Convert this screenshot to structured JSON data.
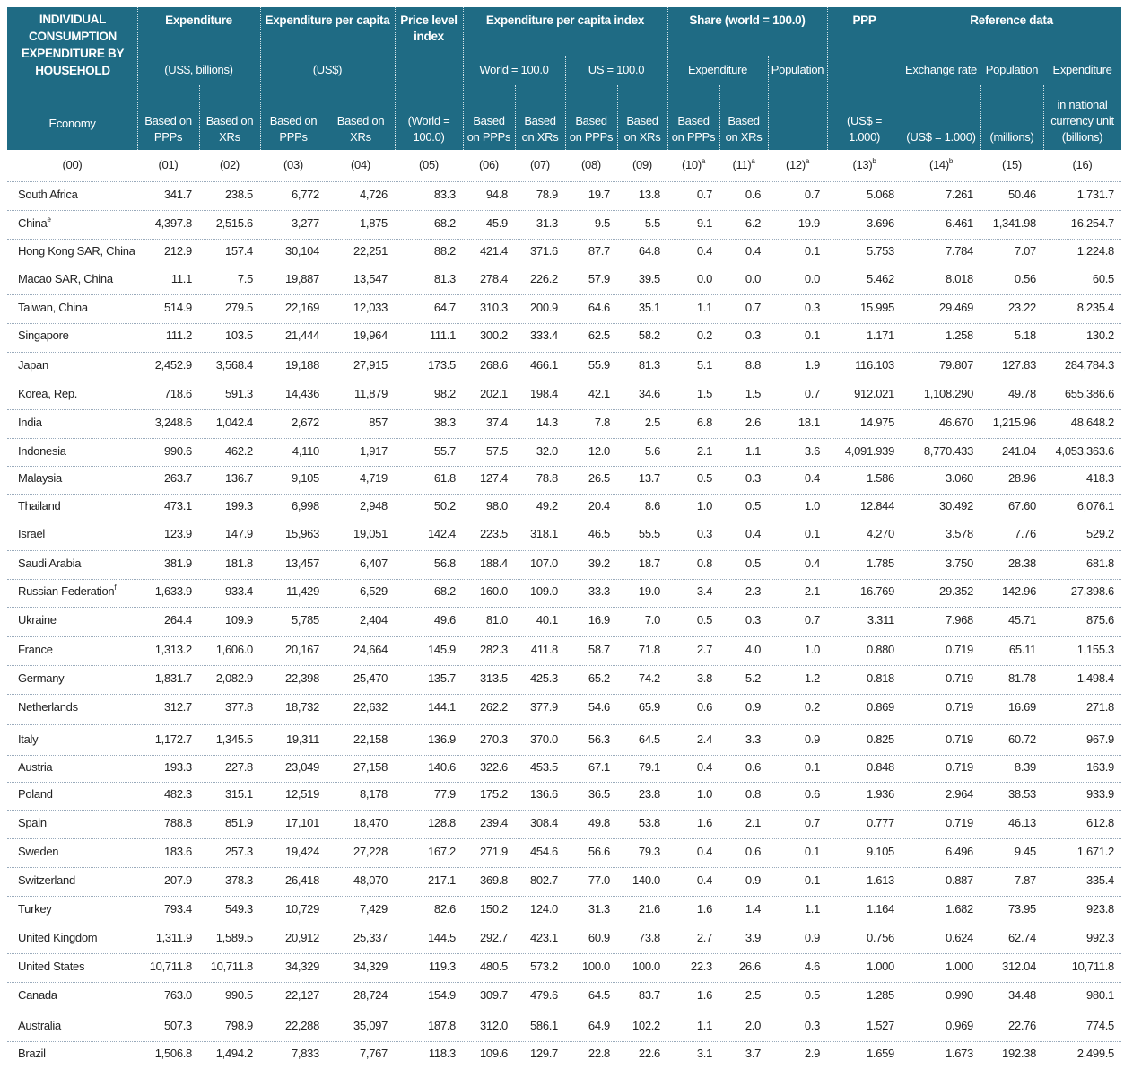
{
  "header": {
    "title": "INDIVIDUAL CONSUMPTION EXPENDITURE BY HOUSEHOLD",
    "economy": "Economy",
    "groups": [
      "Expenditure",
      "Expenditure per capita",
      "Price level index",
      "Expenditure per capita index",
      "Share (world = 100.0)",
      "PPP",
      "Reference data"
    ],
    "subgroups": [
      "(US$, billions)",
      "(US$)",
      "World = 100.0",
      "US = 100.0",
      "Expenditure",
      "Population",
      "Exchange rate",
      "Population",
      "Expenditure"
    ],
    "column_labels": [
      "Based on PPPs",
      "Based on XRs",
      "Based on PPPs",
      "Based on XRs",
      "(World = 100.0)",
      "Based on PPPs",
      "Based on XRs",
      "Based on PPPs",
      "Based on XRs",
      "Based on PPPs",
      "Based on XRs",
      "(US$ = 1.000)",
      "(US$ = 1.000)",
      "(millions)",
      "in national currency unit (billions)"
    ],
    "codes": [
      {
        "text": "(00)"
      },
      {
        "text": "(01)"
      },
      {
        "text": "(02)"
      },
      {
        "text": "(03)"
      },
      {
        "text": "(04)"
      },
      {
        "text": "(05)"
      },
      {
        "text": "(06)"
      },
      {
        "text": "(07)"
      },
      {
        "text": "(08)"
      },
      {
        "text": "(09)"
      },
      {
        "text": "(10)",
        "note": "a"
      },
      {
        "text": "(11)",
        "note": "a"
      },
      {
        "text": "(12)",
        "note": "a"
      },
      {
        "text": "(13)",
        "note": "b"
      },
      {
        "text": "(14)",
        "note": "b"
      },
      {
        "text": "(15)"
      },
      {
        "text": "(16)"
      }
    ]
  },
  "table": {
    "rows": [
      {
        "economy": "South Africa",
        "values": [
          "341.7",
          "238.5",
          "6,772",
          "4,726",
          "83.3",
          "94.8",
          "78.9",
          "19.7",
          "13.8",
          "0.7",
          "0.6",
          "0.7",
          "5.068",
          "7.261",
          "50.46",
          "1,731.7"
        ]
      },
      {
        "economy": "China",
        "note": "e",
        "values": [
          "4,397.8",
          "2,515.6",
          "3,277",
          "1,875",
          "68.2",
          "45.9",
          "31.3",
          "9.5",
          "5.5",
          "9.1",
          "6.2",
          "19.9",
          "3.696",
          "6.461",
          "1,341.98",
          "16,254.7"
        ]
      },
      {
        "economy": "Hong Kong SAR, China",
        "values": [
          "212.9",
          "157.4",
          "30,104",
          "22,251",
          "88.2",
          "421.4",
          "371.6",
          "87.7",
          "64.8",
          "0.4",
          "0.4",
          "0.1",
          "5.753",
          "7.784",
          "7.07",
          "1,224.8"
        ]
      },
      {
        "economy": "Macao SAR, China",
        "values": [
          "11.1",
          "7.5",
          "19,887",
          "13,547",
          "81.3",
          "278.4",
          "226.2",
          "57.9",
          "39.5",
          "0.0",
          "0.0",
          "0.0",
          "5.462",
          "8.018",
          "0.56",
          "60.5"
        ]
      },
      {
        "economy": "Taiwan, China",
        "values": [
          "514.9",
          "279.5",
          "22,169",
          "12,033",
          "64.7",
          "310.3",
          "200.9",
          "64.6",
          "35.1",
          "1.1",
          "0.7",
          "0.3",
          "15.995",
          "29.469",
          "23.22",
          "8,235.4"
        ]
      },
      {
        "economy": "Singapore",
        "values": [
          "111.2",
          "103.5",
          "21,444",
          "19,964",
          "111.1",
          "300.2",
          "333.4",
          "62.5",
          "58.2",
          "0.2",
          "0.3",
          "0.1",
          "1.171",
          "1.258",
          "5.18",
          "130.2"
        ]
      },
      {
        "economy": "Japan",
        "values": [
          "2,452.9",
          "3,568.4",
          "19,188",
          "27,915",
          "173.5",
          "268.6",
          "466.1",
          "55.9",
          "81.3",
          "5.1",
          "8.8",
          "1.9",
          "116.103",
          "79.807",
          "127.83",
          "284,784.3"
        ]
      },
      {
        "economy": "Korea, Rep.",
        "values": [
          "718.6",
          "591.3",
          "14,436",
          "11,879",
          "98.2",
          "202.1",
          "198.4",
          "42.1",
          "34.6",
          "1.5",
          "1.5",
          "0.7",
          "912.021",
          "1,108.290",
          "49.78",
          "655,386.6"
        ]
      },
      {
        "economy": "India",
        "values": [
          "3,248.6",
          "1,042.4",
          "2,672",
          "857",
          "38.3",
          "37.4",
          "14.3",
          "7.8",
          "2.5",
          "6.8",
          "2.6",
          "18.1",
          "14.975",
          "46.670",
          "1,215.96",
          "48,648.2"
        ]
      },
      {
        "economy": "Indonesia",
        "values": [
          "990.6",
          "462.2",
          "4,110",
          "1,917",
          "55.7",
          "57.5",
          "32.0",
          "12.0",
          "5.6",
          "2.1",
          "1.1",
          "3.6",
          "4,091.939",
          "8,770.433",
          "241.04",
          "4,053,363.6"
        ]
      },
      {
        "economy": "Malaysia",
        "values": [
          "263.7",
          "136.7",
          "9,105",
          "4,719",
          "61.8",
          "127.4",
          "78.8",
          "26.5",
          "13.7",
          "0.5",
          "0.3",
          "0.4",
          "1.586",
          "3.060",
          "28.96",
          "418.3"
        ]
      },
      {
        "economy": "Thailand",
        "values": [
          "473.1",
          "199.3",
          "6,998",
          "2,948",
          "50.2",
          "98.0",
          "49.2",
          "20.4",
          "8.6",
          "1.0",
          "0.5",
          "1.0",
          "12.844",
          "30.492",
          "67.60",
          "6,076.1"
        ]
      },
      {
        "economy": "Israel",
        "values": [
          "123.9",
          "147.9",
          "15,963",
          "19,051",
          "142.4",
          "223.5",
          "318.1",
          "46.5",
          "55.5",
          "0.3",
          "0.4",
          "0.1",
          "4.270",
          "3.578",
          "7.76",
          "529.2"
        ]
      },
      {
        "economy": "Saudi Arabia",
        "values": [
          "381.9",
          "181.8",
          "13,457",
          "6,407",
          "56.8",
          "188.4",
          "107.0",
          "39.2",
          "18.7",
          "0.8",
          "0.5",
          "0.4",
          "1.785",
          "3.750",
          "28.38",
          "681.8"
        ]
      },
      {
        "economy": "Russian Federation",
        "note": "f",
        "values": [
          "1,633.9",
          "933.4",
          "11,429",
          "6,529",
          "68.2",
          "160.0",
          "109.0",
          "33.3",
          "19.0",
          "3.4",
          "2.3",
          "2.1",
          "16.769",
          "29.352",
          "142.96",
          "27,398.6"
        ]
      },
      {
        "economy": "Ukraine",
        "values": [
          "264.4",
          "109.9",
          "5,785",
          "2,404",
          "49.6",
          "81.0",
          "40.1",
          "16.9",
          "7.0",
          "0.5",
          "0.3",
          "0.7",
          "3.311",
          "7.968",
          "45.71",
          "875.6"
        ]
      },
      {
        "economy": "France",
        "values": [
          "1,313.2",
          "1,606.0",
          "20,167",
          "24,664",
          "145.9",
          "282.3",
          "411.8",
          "58.7",
          "71.8",
          "2.7",
          "4.0",
          "1.0",
          "0.880",
          "0.719",
          "65.11",
          "1,155.3"
        ]
      },
      {
        "economy": "Germany",
        "values": [
          "1,831.7",
          "2,082.9",
          "22,398",
          "25,470",
          "135.7",
          "313.5",
          "425.3",
          "65.2",
          "74.2",
          "3.8",
          "5.2",
          "1.2",
          "0.818",
          "0.719",
          "81.78",
          "1,498.4"
        ]
      },
      {
        "economy": "Netherlands",
        "values": [
          "312.7",
          "377.8",
          "18,732",
          "22,632",
          "144.1",
          "262.2",
          "377.9",
          "54.6",
          "65.9",
          "0.6",
          "0.9",
          "0.2",
          "0.869",
          "0.719",
          "16.69",
          "271.8"
        ]
      },
      {
        "economy": "Italy",
        "values": [
          "1,172.7",
          "1,345.5",
          "19,311",
          "22,158",
          "136.9",
          "270.3",
          "370.0",
          "56.3",
          "64.5",
          "2.4",
          "3.3",
          "0.9",
          "0.825",
          "0.719",
          "60.72",
          "967.9"
        ]
      },
      {
        "economy": "Austria",
        "values": [
          "193.3",
          "227.8",
          "23,049",
          "27,158",
          "140.6",
          "322.6",
          "453.5",
          "67.1",
          "79.1",
          "0.4",
          "0.6",
          "0.1",
          "0.848",
          "0.719",
          "8.39",
          "163.9"
        ]
      },
      {
        "economy": "Poland",
        "values": [
          "482.3",
          "315.1",
          "12,519",
          "8,178",
          "77.9",
          "175.2",
          "136.6",
          "36.5",
          "23.8",
          "1.0",
          "0.8",
          "0.6",
          "1.936",
          "2.964",
          "38.53",
          "933.9"
        ]
      },
      {
        "economy": "Spain",
        "values": [
          "788.8",
          "851.9",
          "17,101",
          "18,470",
          "128.8",
          "239.4",
          "308.4",
          "49.8",
          "53.8",
          "1.6",
          "2.1",
          "0.7",
          "0.777",
          "0.719",
          "46.13",
          "612.8"
        ]
      },
      {
        "economy": "Sweden",
        "values": [
          "183.6",
          "257.3",
          "19,424",
          "27,228",
          "167.2",
          "271.9",
          "454.6",
          "56.6",
          "79.3",
          "0.4",
          "0.6",
          "0.1",
          "9.105",
          "6.496",
          "9.45",
          "1,671.2"
        ]
      },
      {
        "economy": "Switzerland",
        "values": [
          "207.9",
          "378.3",
          "26,418",
          "48,070",
          "217.1",
          "369.8",
          "802.7",
          "77.0",
          "140.0",
          "0.4",
          "0.9",
          "0.1",
          "1.613",
          "0.887",
          "7.87",
          "335.4"
        ]
      },
      {
        "economy": "Turkey",
        "values": [
          "793.4",
          "549.3",
          "10,729",
          "7,429",
          "82.6",
          "150.2",
          "124.0",
          "31.3",
          "21.6",
          "1.6",
          "1.4",
          "1.1",
          "1.164",
          "1.682",
          "73.95",
          "923.8"
        ]
      },
      {
        "economy": "United Kingdom",
        "values": [
          "1,311.9",
          "1,589.5",
          "20,912",
          "25,337",
          "144.5",
          "292.7",
          "423.1",
          "60.9",
          "73.8",
          "2.7",
          "3.9",
          "0.9",
          "0.756",
          "0.624",
          "62.74",
          "992.3"
        ]
      },
      {
        "economy": "United States",
        "values": [
          "10,711.8",
          "10,711.8",
          "34,329",
          "34,329",
          "119.3",
          "480.5",
          "573.2",
          "100.0",
          "100.0",
          "22.3",
          "26.6",
          "4.6",
          "1.000",
          "1.000",
          "312.04",
          "10,711.8"
        ]
      },
      {
        "economy": "Canada",
        "values": [
          "763.0",
          "990.5",
          "22,127",
          "28,724",
          "154.9",
          "309.7",
          "479.6",
          "64.5",
          "83.7",
          "1.6",
          "2.5",
          "0.5",
          "1.285",
          "0.990",
          "34.48",
          "980.1"
        ]
      },
      {
        "economy": "Australia",
        "values": [
          "507.3",
          "798.9",
          "22,288",
          "35,097",
          "187.8",
          "312.0",
          "586.1",
          "64.9",
          "102.2",
          "1.1",
          "2.0",
          "0.3",
          "1.527",
          "0.969",
          "22.76",
          "774.5"
        ]
      },
      {
        "economy": "Brazil",
        "values": [
          "1,506.8",
          "1,494.2",
          "7,833",
          "7,767",
          "118.3",
          "109.6",
          "129.7",
          "22.8",
          "22.6",
          "3.1",
          "3.7",
          "2.9",
          "1.659",
          "1.673",
          "192.38",
          "2,499.5"
        ]
      }
    ]
  }
}
